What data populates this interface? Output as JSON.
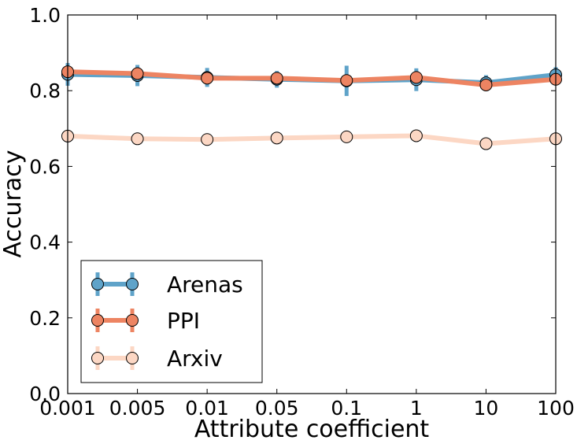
{
  "chart_data": {
    "type": "line",
    "xlabel": "Attribute coefficient",
    "ylabel": "Accuracy",
    "categories": [
      "0.001",
      "0.005",
      "0.01",
      "0.05",
      "0.1",
      "1",
      "10",
      "100"
    ],
    "yticks": [
      "0.0",
      "0.2",
      "0.4",
      "0.6",
      "0.8",
      "1.0"
    ],
    "ylim": [
      0,
      1
    ],
    "grid": false,
    "legend_position": "lower-left",
    "series": [
      {
        "name": "Arenas",
        "color": "#5fa3c9",
        "values": [
          0.843,
          0.84,
          0.835,
          0.83,
          0.826,
          0.829,
          0.821,
          0.842
        ],
        "errors": [
          0.03,
          0.028,
          0.025,
          0.022,
          0.04,
          0.03,
          0.02,
          0.02
        ]
      },
      {
        "name": "PPI",
        "color": "#ed8462",
        "values": [
          0.85,
          0.845,
          0.833,
          0.833,
          0.827,
          0.835,
          0.815,
          0.83
        ],
        "errors": [
          0.01,
          0.01,
          0.01,
          0.01,
          0.01,
          0.01,
          0.01,
          0.01
        ]
      },
      {
        "name": "Arxiv",
        "color": "#fcd7c4",
        "values": [
          0.68,
          0.673,
          0.671,
          0.675,
          0.678,
          0.681,
          0.66,
          0.673
        ],
        "errors": [
          0.005,
          0.005,
          0.005,
          0.005,
          0.005,
          0.012,
          0.005,
          0.005
        ]
      }
    ]
  }
}
